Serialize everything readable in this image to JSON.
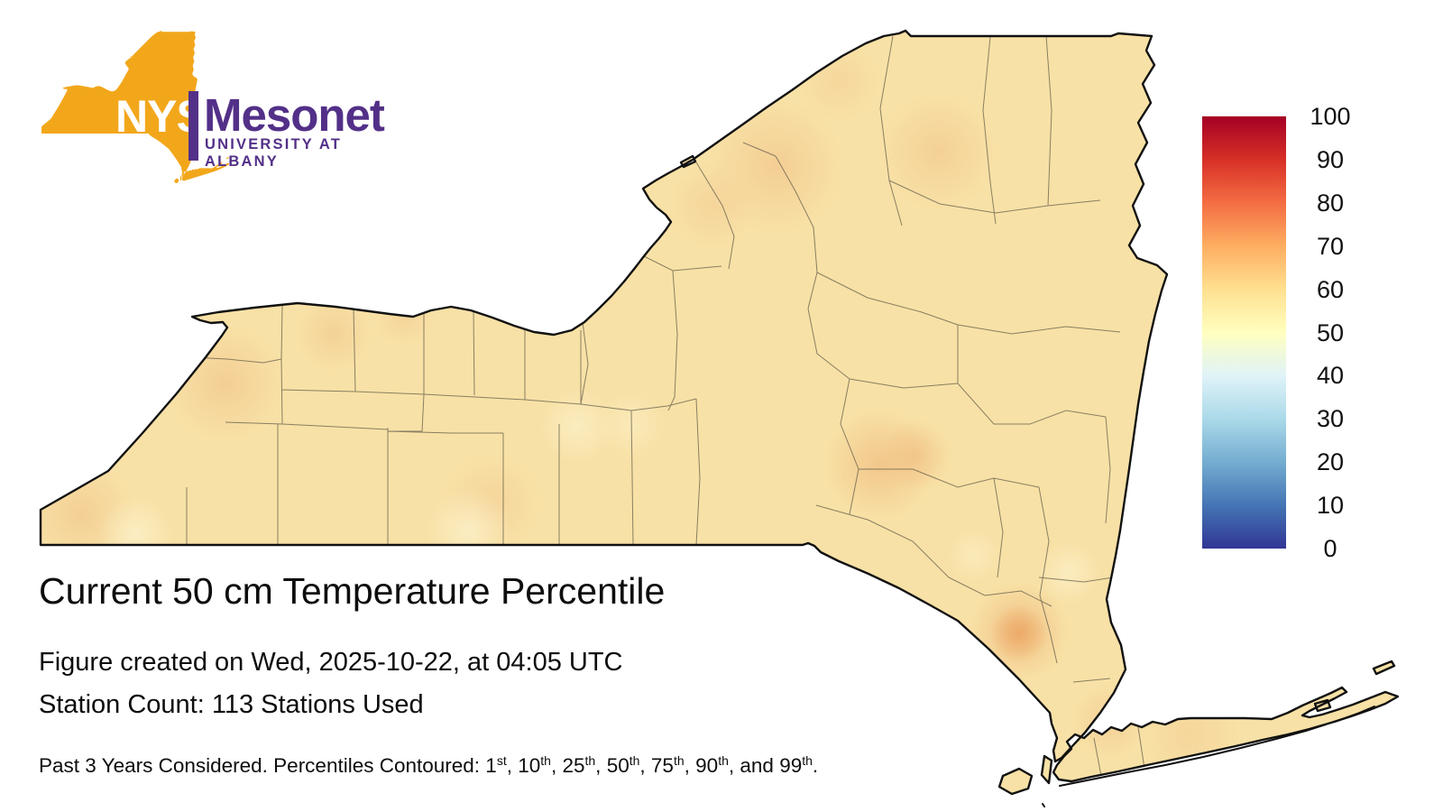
{
  "logo": {
    "org_abbrev": "NYS",
    "org_name": "Mesonet",
    "org_subtitle": "UNIVERSITY AT ALBANY",
    "colors": {
      "state_fill": "#F2A71B",
      "abbrev_text": "#FFFFFF",
      "brand_text": "#533088"
    }
  },
  "map": {
    "region": "New York State",
    "base_fill": "#F8E1A6",
    "outline_color": "#111111",
    "county_line_color": "#4D4A3E"
  },
  "colorbar": {
    "min": 0,
    "max": 100,
    "ticks": [
      100,
      90,
      80,
      70,
      60,
      50,
      40,
      30,
      20,
      10,
      0
    ],
    "colors_bottom_to_top": [
      "#313695",
      "#4575B4",
      "#74ADD1",
      "#ABD9E9",
      "#E0F3F8",
      "#FFFFBF",
      "#FEE090",
      "#FDAE61",
      "#F46D43",
      "#D73027",
      "#A50026"
    ]
  },
  "titles": {
    "main": "Current 50 cm Temperature Percentile",
    "created": "Figure created on Wed, 2025-10-22, at 04:05 UTC",
    "station_count": "Station Count: 113 Stations Used"
  },
  "footnote": {
    "prefix": "Past 3 Years Considered. Percentiles Contoured: ",
    "percentiles": [
      {
        "value": "1",
        "suffix": "st"
      },
      {
        "value": "10",
        "suffix": "th"
      },
      {
        "value": "25",
        "suffix": "th"
      },
      {
        "value": "50",
        "suffix": "th"
      },
      {
        "value": "75",
        "suffix": "th"
      },
      {
        "value": "90",
        "suffix": "th"
      },
      {
        "value": "99",
        "suffix": "th"
      }
    ],
    "conjunction": "and",
    "terminator": "."
  },
  "chart_data": {
    "type": "heatmap",
    "title": "Current 50 cm Temperature Percentile",
    "region": "New York State, contour-filled map with county boundaries",
    "variable": "50 cm soil temperature percentile",
    "units": "percentile (0-100)",
    "colorbar_ticks": [
      0,
      10,
      20,
      30,
      40,
      50,
      60,
      70,
      80,
      90,
      100
    ],
    "colormap": "RdYlBu reversed (blue = 0 low, pale yellow = 50, dark red = 100 high)",
    "contour_levels": [
      1,
      10,
      25,
      50,
      75,
      90,
      99
    ],
    "station_count": 113,
    "years_considered": 3,
    "created": "Wed, 2025-10-22, at 04:05 UTC",
    "map_value_summary": "Statewide values mostly 50-62 (pale yellow to light orange); locally higher (~62-68) near Buffalo, the eastern Lake Ontario shore, St. Lawrence valley, central Catskills and Orange County; no areas below ~45 anywhere."
  }
}
